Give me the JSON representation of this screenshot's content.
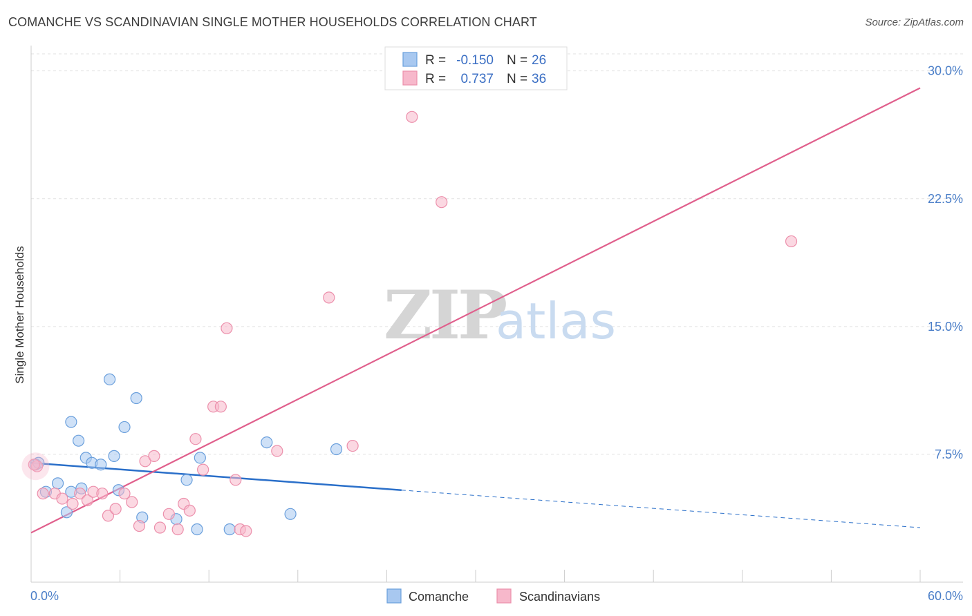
{
  "title": "COMANCHE VS SCANDINAVIAN SINGLE MOTHER HOUSEHOLDS CORRELATION CHART",
  "source": "Source: ZipAtlas.com",
  "watermark": {
    "zip": "ZIP",
    "atlas": "atlas"
  },
  "colors": {
    "comanche_fill": "#a8c8f0",
    "comanche_stroke": "#6a9fdc",
    "comanche_line": "#2a6fc9",
    "scand_fill": "#f7b8cb",
    "scand_stroke": "#ec8fab",
    "scand_line": "#e05f8c",
    "tick_text": "#4a7ec8",
    "grid": "#e2e2e2"
  },
  "legend": {
    "rows": [
      {
        "r_label": "R = ",
        "r_value": "-0.150",
        "n_label": "N = ",
        "n_value": "26"
      },
      {
        "r_label": "R = ",
        "r_value": "0.737",
        "n_label": "N = ",
        "n_value": "36"
      }
    ]
  },
  "chart_data": {
    "type": "scatter",
    "title": "COMANCHE VS SCANDINAVIAN SINGLE MOTHER HOUSEHOLDS CORRELATION CHART",
    "xlabel": "",
    "ylabel": "Single Mother Households",
    "xlim": [
      0,
      60
    ],
    "ylim": [
      0,
      31
    ],
    "x_tick_labels": {
      "left": "0.0%",
      "right": "60.0%"
    },
    "y_ticks": [
      {
        "value": 7.5,
        "label": "7.5%"
      },
      {
        "value": 15.0,
        "label": "15.0%"
      },
      {
        "value": 22.5,
        "label": "22.5%"
      },
      {
        "value": 30.0,
        "label": "30.0%"
      }
    ],
    "series": [
      {
        "name": "Comanche",
        "trend": {
          "x0": 0,
          "y0": 7.0,
          "x1": 25,
          "y1": 5.4,
          "dash_to_x": 60,
          "dash_to_y": 3.2
        },
        "points": [
          {
            "x": 0.3,
            "y": 6.9
          },
          {
            "x": 0.5,
            "y": 7.0
          },
          {
            "x": 1.0,
            "y": 5.3
          },
          {
            "x": 1.8,
            "y": 5.8
          },
          {
            "x": 2.4,
            "y": 4.1
          },
          {
            "x": 2.7,
            "y": 5.3
          },
          {
            "x": 2.7,
            "y": 9.4
          },
          {
            "x": 3.2,
            "y": 8.3
          },
          {
            "x": 3.4,
            "y": 5.5
          },
          {
            "x": 3.7,
            "y": 7.3
          },
          {
            "x": 4.1,
            "y": 7.0
          },
          {
            "x": 4.7,
            "y": 6.9
          },
          {
            "x": 5.3,
            "y": 11.9
          },
          {
            "x": 5.6,
            "y": 7.4
          },
          {
            "x": 5.9,
            "y": 5.4
          },
          {
            "x": 6.3,
            "y": 9.1
          },
          {
            "x": 7.1,
            "y": 10.8
          },
          {
            "x": 7.5,
            "y": 3.8
          },
          {
            "x": 9.8,
            "y": 3.7
          },
          {
            "x": 10.5,
            "y": 6.0
          },
          {
            "x": 11.2,
            "y": 3.1
          },
          {
            "x": 11.4,
            "y": 7.3
          },
          {
            "x": 13.4,
            "y": 3.1
          },
          {
            "x": 15.9,
            "y": 8.2
          },
          {
            "x": 17.5,
            "y": 4.0
          },
          {
            "x": 20.6,
            "y": 7.8
          }
        ]
      },
      {
        "name": "Scandinavians",
        "trend": {
          "x0": 0,
          "y0": 2.9,
          "x1": 60,
          "y1": 29.0
        },
        "points": [
          {
            "x": 0.4,
            "y": 6.8
          },
          {
            "x": 0.8,
            "y": 5.2
          },
          {
            "x": 1.6,
            "y": 5.2
          },
          {
            "x": 2.1,
            "y": 4.9
          },
          {
            "x": 2.8,
            "y": 4.6
          },
          {
            "x": 3.3,
            "y": 5.2
          },
          {
            "x": 3.8,
            "y": 4.8
          },
          {
            "x": 4.2,
            "y": 5.3
          },
          {
            "x": 4.8,
            "y": 5.2
          },
          {
            "x": 5.2,
            "y": 3.9
          },
          {
            "x": 5.7,
            "y": 4.3
          },
          {
            "x": 6.3,
            "y": 5.2
          },
          {
            "x": 6.8,
            "y": 4.7
          },
          {
            "x": 7.3,
            "y": 3.3
          },
          {
            "x": 7.7,
            "y": 7.1
          },
          {
            "x": 8.3,
            "y": 7.4
          },
          {
            "x": 8.7,
            "y": 3.2
          },
          {
            "x": 9.3,
            "y": 4.0
          },
          {
            "x": 9.9,
            "y": 3.1
          },
          {
            "x": 10.3,
            "y": 4.6
          },
          {
            "x": 10.7,
            "y": 4.2
          },
          {
            "x": 11.1,
            "y": 8.4
          },
          {
            "x": 11.6,
            "y": 6.6
          },
          {
            "x": 12.3,
            "y": 10.3
          },
          {
            "x": 12.8,
            "y": 10.3
          },
          {
            "x": 13.2,
            "y": 14.9
          },
          {
            "x": 13.8,
            "y": 6.0
          },
          {
            "x": 14.1,
            "y": 3.1
          },
          {
            "x": 14.5,
            "y": 3.0
          },
          {
            "x": 16.6,
            "y": 7.7
          },
          {
            "x": 20.1,
            "y": 16.7
          },
          {
            "x": 21.7,
            "y": 8.0
          },
          {
            "x": 25.7,
            "y": 27.3
          },
          {
            "x": 27.7,
            "y": 22.3
          },
          {
            "x": 51.3,
            "y": 20.0
          },
          {
            "x": 0.2,
            "y": 6.9
          }
        ]
      }
    ],
    "legend_position": "top-center",
    "grid": true
  }
}
